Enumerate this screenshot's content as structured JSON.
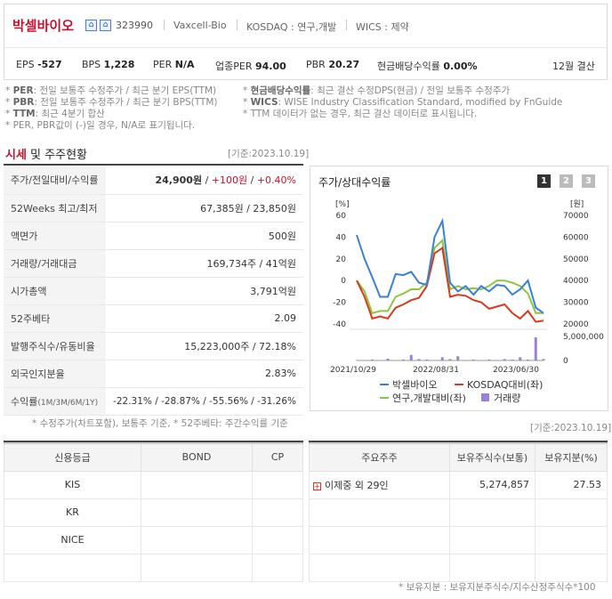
{
  "company": {
    "name": "박셀바이오",
    "code": "323990",
    "english_name": "Vaxcell-Bio",
    "market": "KOSDAQ : 연구,개발",
    "wics": "WICS : 제약",
    "settle": "12월 결산"
  },
  "metrics": [
    {
      "label": "EPS",
      "value": "-527"
    },
    {
      "label": "BPS",
      "value": "1,228"
    },
    {
      "label": "PER",
      "value": "N/A"
    },
    {
      "label": "업종PER",
      "value": "94.00"
    },
    {
      "label": "PBR",
      "value": "20.27"
    },
    {
      "label": "현금배당수익률",
      "value": "0.00%"
    }
  ],
  "footnotes": {
    "per": {
      "key": "PER",
      "text": ": 전일 보통주 수정주가 / 최근 분기 EPS(TTM)"
    },
    "pbr": {
      "key": "PBR",
      "text": ": 전일 보통주 수정주가 / 최근 분기 BPS(TTM)"
    },
    "ttm": {
      "key": "TTM",
      "text": ": 최근 4분기 합산"
    },
    "neg": "* PER, PBR값이 (-)일 경우, N/A로 표기됩니다.",
    "div": {
      "key": "현금배당수익률",
      "text": ": 최근 결산 수정DPS(현금) / 전일 보통주 수정주가"
    },
    "wics": {
      "key": "WICS",
      "text": ": WISE Industry Classification Standard, modified by FnGuide"
    },
    "ttm2": "* TTM 데이터가 없는 경우, 최근 결산 데이터로 표시됩니다."
  },
  "market_section": {
    "title_a": "시세",
    "title_b": " 및 주주현황",
    "basis": "[기준:2023.10.19]"
  },
  "quote": [
    {
      "label": "주가/전일대비/수익률",
      "value": "24,900원",
      "change": "+100원",
      "rate": "+0.40%"
    },
    {
      "label": "52Weeks 최고/최저",
      "value": "67,385원 / 23,850원"
    },
    {
      "label": "액면가",
      "value": "500원"
    },
    {
      "label": "거래량/거래대금",
      "value": "169,734주 / 41억원"
    },
    {
      "label": "시가총액",
      "value": "3,791억원"
    },
    {
      "label": "52주베타",
      "value": "2.09"
    },
    {
      "label": "발행주식수/유동비율",
      "value": "15,223,000주 / 72.18%"
    },
    {
      "label": "외국인지분율",
      "value": "2.83%"
    }
  ],
  "returns": {
    "label": "수익률",
    "sub": "(1M/3M/6M/1Y)",
    "value": "-22.31% / -28.87% / -55.56% / -31.26%"
  },
  "quote_note": "* 수정주가(차트포함), 보통주 기준, * 52주베타: 주간수익률 기준",
  "chart_title": "주가/상대수익률",
  "pager": [
    "1",
    "2",
    "3"
  ],
  "chart_data": {
    "type": "line",
    "x_ticks": [
      "2021/10/29",
      "2022/08/31",
      "2023/06/30"
    ],
    "left_axis": {
      "unit": "[%]",
      "ticks": [
        "60",
        "40",
        "20",
        "0",
        "-20",
        "-40"
      ],
      "range": [
        -40,
        60
      ]
    },
    "right_axis": {
      "unit": "[원]",
      "ticks": [
        "70000",
        "60000",
        "50000",
        "40000",
        "30000",
        "20000"
      ],
      "range": [
        20000,
        70000
      ]
    },
    "volume_axis": {
      "ticks": [
        "5,000,000",
        "0"
      ]
    },
    "series": [
      {
        "name": "박셀바이오",
        "color": "#3a7fd8",
        "values": [
          42,
          20,
          3,
          -15,
          -15,
          6,
          5,
          8,
          -2,
          -4,
          40,
          55,
          -2,
          -10,
          -5,
          -13,
          -5,
          -10,
          -4,
          -5,
          -13,
          -8,
          0,
          -25,
          -30
        ]
      },
      {
        "name": "KOSDAQ대비(좌)",
        "color": "#d9381e",
        "values": [
          0,
          -15,
          -35,
          -33,
          -35,
          -25,
          -22,
          -18,
          -16,
          -5,
          25,
          30,
          -15,
          -13,
          -14,
          -18,
          -20,
          -26,
          -24,
          -22,
          -30,
          -35,
          -28,
          -38,
          -37
        ]
      },
      {
        "name": "연구,개발대비(좌)",
        "color": "#8cc63f",
        "values": [
          0,
          -10,
          -30,
          -28,
          -28,
          -15,
          -12,
          -8,
          -8,
          -2,
          30,
          37,
          -8,
          -5,
          -8,
          -7,
          -8,
          -5,
          0,
          0,
          -2,
          -5,
          -12,
          -30,
          -30
        ]
      }
    ],
    "volume": {
      "name": "거래량",
      "color": "#9b7fd8",
      "values": [
        0.1,
        0.1,
        0.2,
        0.1,
        0.4,
        0.1,
        0.2,
        1.2,
        0.3,
        0.2,
        0.1,
        0.7,
        0.3,
        0.9,
        0.1,
        0.2,
        0.1,
        0.2,
        0.1,
        0.3,
        0.2,
        0.7,
        0.2,
        5.0,
        0.3
      ]
    }
  },
  "credit": {
    "headers": [
      "신용등급",
      "BOND",
      "CP"
    ],
    "rows": [
      [
        "KIS",
        "",
        ""
      ],
      [
        "KR",
        "",
        ""
      ],
      [
        "NICE",
        "",
        ""
      ]
    ]
  },
  "holders": {
    "basis": "[기준:2023.10.19]",
    "headers": [
      "주요주주",
      "보유주식수(보통)",
      "보유지분(%)"
    ],
    "rows": [
      {
        "name": "이제중 외 29인",
        "shares": "5,274,857",
        "pct": "27.53"
      }
    ],
    "note": "* 보유지분 : 보유지분주식수/지수산정주식수*100"
  }
}
